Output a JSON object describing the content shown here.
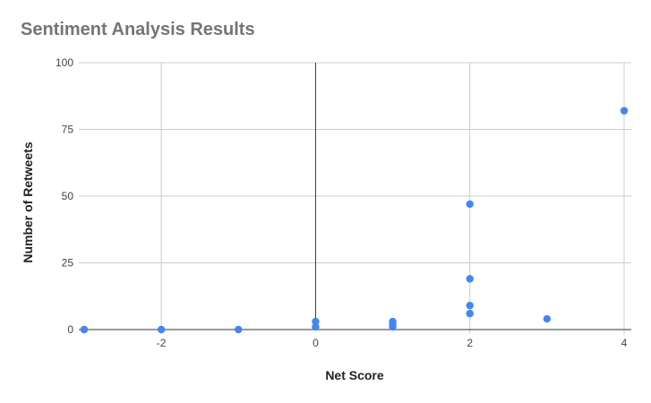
{
  "chart_data": {
    "type": "scatter",
    "title": "Sentiment Analysis Results",
    "xlabel": "Net Score",
    "ylabel": "Number of Retweets",
    "xlim": [
      -3,
      4
    ],
    "ylim": [
      0,
      100
    ],
    "x_ticks": [
      -2,
      0,
      2,
      4
    ],
    "y_ticks": [
      0,
      25,
      50,
      75,
      100
    ],
    "grid": true,
    "legend": "none",
    "point_color": "#4285f4",
    "points": [
      {
        "x": -3,
        "y": 0
      },
      {
        "x": -2,
        "y": 0
      },
      {
        "x": -1,
        "y": 0
      },
      {
        "x": 0,
        "y": 1
      },
      {
        "x": 0,
        "y": 3
      },
      {
        "x": 1,
        "y": 1
      },
      {
        "x": 1,
        "y": 2
      },
      {
        "x": 1,
        "y": 3
      },
      {
        "x": 2,
        "y": 6
      },
      {
        "x": 2,
        "y": 9
      },
      {
        "x": 2,
        "y": 19
      },
      {
        "x": 2,
        "y": 47
      },
      {
        "x": 3,
        "y": 4
      },
      {
        "x": 4,
        "y": 82
      }
    ]
  }
}
